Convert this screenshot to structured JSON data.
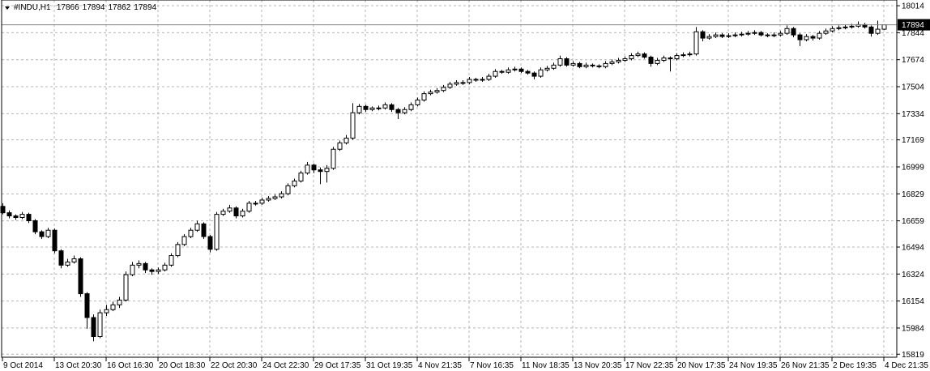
{
  "chart_data": {
    "type": "candlestick",
    "title": "#INDU,H1",
    "categories": [
      "9 Oct 2014",
      null,
      null,
      null,
      null,
      null,
      null,
      null,
      "13 Oct 20:30",
      null,
      null,
      null,
      null,
      null,
      null,
      null,
      "16 Oct 16:30",
      null,
      null,
      null,
      null,
      null,
      null,
      null,
      "20 Oct 18:30",
      null,
      null,
      null,
      null,
      null,
      null,
      null,
      "22 Oct 20:30",
      null,
      null,
      null,
      null,
      null,
      null,
      null,
      "24 Oct 22:30",
      null,
      null,
      null,
      null,
      null,
      null,
      null,
      "29 Oct 17:35",
      null,
      null,
      null,
      null,
      null,
      null,
      null,
      "31 Oct 19:35",
      null,
      null,
      null,
      null,
      null,
      null,
      null,
      "4 Nov 21:35",
      null,
      null,
      null,
      null,
      null,
      null,
      null,
      "7 Nov 16:35",
      null,
      null,
      null,
      null,
      null,
      null,
      null,
      "11 Nov 18:35",
      null,
      null,
      null,
      null,
      null,
      null,
      null,
      "13 Nov 20:35",
      null,
      null,
      null,
      null,
      null,
      null,
      null,
      "17 Nov 22:35",
      null,
      null,
      null,
      null,
      null,
      null,
      null,
      "20 Nov 17:35",
      null,
      null,
      null,
      null,
      null,
      null,
      null,
      "24 Nov 19:35",
      null,
      null,
      null,
      null,
      null,
      null,
      null,
      "26 Nov 21:35",
      null,
      null,
      null,
      null,
      null,
      null,
      null,
      "2 Dec 19:35",
      null,
      null,
      null,
      null,
      null,
      null,
      null,
      "4 Dec 21:35"
    ],
    "series": [
      {
        "up_color": "#ffffff",
        "down_color": "#000000",
        "outline_color": "#000000",
        "values": [
          [
            16750,
            16770,
            16700,
            16710
          ],
          [
            16710,
            16725,
            16675,
            16690
          ],
          [
            16690,
            16700,
            16665,
            16680
          ],
          [
            16680,
            16715,
            16670,
            16700
          ],
          [
            16700,
            16710,
            16645,
            16660
          ],
          [
            16660,
            16670,
            16575,
            16590
          ],
          [
            16590,
            16600,
            16545,
            16560
          ],
          [
            16560,
            16615,
            16550,
            16600
          ],
          [
            16600,
            16610,
            16455,
            16470
          ],
          [
            16470,
            16480,
            16360,
            16380
          ],
          [
            16380,
            16420,
            16370,
            16400
          ],
          [
            16400,
            16440,
            16390,
            16420
          ],
          [
            16420,
            16430,
            16180,
            16200
          ],
          [
            16200,
            16210,
            15980,
            16050
          ],
          [
            16050,
            16070,
            15900,
            15930
          ],
          [
            15930,
            16100,
            15920,
            16080
          ],
          [
            16080,
            16130,
            16060,
            16100
          ],
          [
            16100,
            16150,
            16090,
            16130
          ],
          [
            16130,
            16180,
            16110,
            16160
          ],
          [
            16160,
            16340,
            16150,
            16320
          ],
          [
            16320,
            16400,
            16310,
            16380
          ],
          [
            16380,
            16410,
            16360,
            16390
          ],
          [
            16390,
            16400,
            16330,
            16350
          ],
          [
            16350,
            16360,
            16320,
            16340
          ],
          [
            16340,
            16365,
            16325,
            16350
          ],
          [
            16350,
            16395,
            16340,
            16380
          ],
          [
            16380,
            16455,
            16370,
            16440
          ],
          [
            16440,
            16525,
            16430,
            16510
          ],
          [
            16510,
            16575,
            16500,
            16560
          ],
          [
            16560,
            16615,
            16550,
            16600
          ],
          [
            16600,
            16660,
            16590,
            16640
          ],
          [
            16640,
            16650,
            16545,
            16560
          ],
          [
            16560,
            16570,
            16460,
            16480
          ],
          [
            16480,
            16715,
            16470,
            16700
          ],
          [
            16700,
            16735,
            16690,
            16720
          ],
          [
            16720,
            16760,
            16710,
            16740
          ],
          [
            16740,
            16750,
            16675,
            16690
          ],
          [
            16690,
            16735,
            16680,
            16720
          ],
          [
            16720,
            16785,
            16710,
            16770
          ],
          [
            16770,
            16785,
            16755,
            16770
          ],
          [
            16770,
            16805,
            16760,
            16790
          ],
          [
            16790,
            16815,
            16780,
            16800
          ],
          [
            16800,
            16825,
            16790,
            16810
          ],
          [
            16810,
            16845,
            16800,
            16830
          ],
          [
            16830,
            16895,
            16820,
            16880
          ],
          [
            16880,
            16925,
            16870,
            16910
          ],
          [
            16910,
            16975,
            16900,
            16960
          ],
          [
            16960,
            17030,
            16950,
            17010
          ],
          [
            17010,
            17020,
            16960,
            16980
          ],
          [
            16980,
            16995,
            16890,
            16970
          ],
          [
            16970,
            17010,
            16900,
            16990
          ],
          [
            16990,
            17125,
            16980,
            17110
          ],
          [
            17110,
            17165,
            17100,
            17150
          ],
          [
            17150,
            17200,
            17140,
            17180
          ],
          [
            17180,
            17400,
            17170,
            17340
          ],
          [
            17340,
            17395,
            17330,
            17380
          ],
          [
            17380,
            17390,
            17345,
            17360
          ],
          [
            17360,
            17380,
            17350,
            17370
          ],
          [
            17370,
            17385,
            17355,
            17370
          ],
          [
            17370,
            17405,
            17360,
            17390
          ],
          [
            17390,
            17400,
            17345,
            17360
          ],
          [
            17360,
            17370,
            17300,
            17340
          ],
          [
            17340,
            17375,
            17330,
            17360
          ],
          [
            17360,
            17405,
            17350,
            17390
          ],
          [
            17390,
            17435,
            17380,
            17420
          ],
          [
            17420,
            17475,
            17410,
            17460
          ],
          [
            17460,
            17485,
            17450,
            17470
          ],
          [
            17470,
            17495,
            17460,
            17480
          ],
          [
            17480,
            17515,
            17470,
            17500
          ],
          [
            17500,
            17535,
            17490,
            17520
          ],
          [
            17520,
            17545,
            17510,
            17530
          ],
          [
            17530,
            17545,
            17515,
            17530
          ],
          [
            17530,
            17565,
            17520,
            17550
          ],
          [
            17550,
            17560,
            17535,
            17545
          ],
          [
            17545,
            17565,
            17535,
            17550
          ],
          [
            17550,
            17585,
            17540,
            17570
          ],
          [
            17570,
            17615,
            17560,
            17600
          ],
          [
            17600,
            17610,
            17585,
            17595
          ],
          [
            17595,
            17625,
            17585,
            17610
          ],
          [
            17610,
            17630,
            17600,
            17615
          ],
          [
            17615,
            17625,
            17590,
            17600
          ],
          [
            17600,
            17610,
            17580,
            17590
          ],
          [
            17590,
            17600,
            17550,
            17570
          ],
          [
            17570,
            17625,
            17560,
            17610
          ],
          [
            17610,
            17635,
            17600,
            17620
          ],
          [
            17620,
            17655,
            17610,
            17640
          ],
          [
            17640,
            17700,
            17630,
            17680
          ],
          [
            17680,
            17690,
            17630,
            17640
          ],
          [
            17640,
            17665,
            17630,
            17650
          ],
          [
            17650,
            17660,
            17620,
            17630
          ],
          [
            17630,
            17655,
            17620,
            17640
          ],
          [
            17640,
            17650,
            17625,
            17635
          ],
          [
            17635,
            17645,
            17620,
            17630
          ],
          [
            17630,
            17665,
            17620,
            17650
          ],
          [
            17650,
            17675,
            17640,
            17660
          ],
          [
            17660,
            17685,
            17650,
            17670
          ],
          [
            17670,
            17695,
            17660,
            17680
          ],
          [
            17680,
            17715,
            17670,
            17700
          ],
          [
            17700,
            17725,
            17690,
            17710
          ],
          [
            17710,
            17720,
            17680,
            17690
          ],
          [
            17690,
            17700,
            17630,
            17650
          ],
          [
            17650,
            17685,
            17640,
            17670
          ],
          [
            17670,
            17700,
            17660,
            17685
          ],
          [
            17685,
            17695,
            17600,
            17680
          ],
          [
            17680,
            17715,
            17670,
            17700
          ],
          [
            17700,
            17720,
            17690,
            17705
          ],
          [
            17705,
            17725,
            17695,
            17710
          ],
          [
            17710,
            17880,
            17700,
            17850
          ],
          [
            17850,
            17860,
            17790,
            17810
          ],
          [
            17810,
            17835,
            17800,
            17820
          ],
          [
            17820,
            17845,
            17810,
            17830
          ],
          [
            17830,
            17840,
            17810,
            17820
          ],
          [
            17820,
            17840,
            17810,
            17825
          ],
          [
            17825,
            17845,
            17815,
            17830
          ],
          [
            17830,
            17850,
            17820,
            17835
          ],
          [
            17835,
            17855,
            17825,
            17840
          ],
          [
            17840,
            17860,
            17830,
            17845
          ],
          [
            17845,
            17855,
            17820,
            17830
          ],
          [
            17830,
            17840,
            17815,
            17825
          ],
          [
            17825,
            17845,
            17815,
            17830
          ],
          [
            17830,
            17855,
            17820,
            17840
          ],
          [
            17840,
            17890,
            17830,
            17870
          ],
          [
            17870,
            17880,
            17815,
            17830
          ],
          [
            17830,
            17840,
            17760,
            17800
          ],
          [
            17800,
            17835,
            17790,
            17820
          ],
          [
            17820,
            17830,
            17795,
            17810
          ],
          [
            17810,
            17855,
            17800,
            17840
          ],
          [
            17840,
            17870,
            17830,
            17855
          ],
          [
            17855,
            17885,
            17845,
            17870
          ],
          [
            17870,
            17890,
            17860,
            17875
          ],
          [
            17875,
            17895,
            17865,
            17880
          ],
          [
            17880,
            17900,
            17870,
            17885
          ],
          [
            17885,
            17915,
            17875,
            17895
          ],
          [
            17895,
            17905,
            17870,
            17880
          ],
          [
            17880,
            17890,
            17820,
            17840
          ],
          [
            17840,
            17920,
            17830,
            17866
          ],
          [
            17866,
            17894,
            17862,
            17894
          ]
        ]
      }
    ],
    "ylim": [
      15800,
      18050
    ],
    "yticks": [
      18014,
      17844,
      17674,
      17504,
      17334,
      17169,
      16999,
      16829,
      16659,
      16494,
      16324,
      16154,
      15984,
      15819
    ],
    "grid": true
  }
}
